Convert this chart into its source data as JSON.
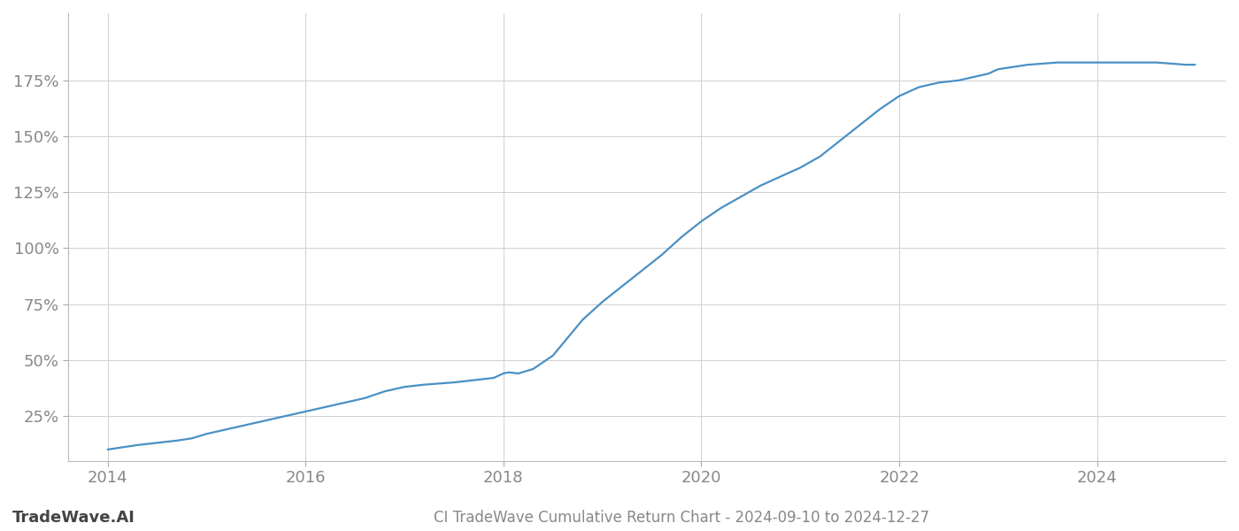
{
  "title": "CI TradeWave Cumulative Return Chart - 2024-09-10 to 2024-12-27",
  "watermark": "TradeWave.AI",
  "line_color": "#4a90c4",
  "background_color": "#ffffff",
  "grid_color": "#d0d0d0",
  "yticks": [
    25,
    50,
    75,
    100,
    125,
    150,
    175
  ],
  "xticks": [
    2014,
    2016,
    2018,
    2020,
    2022,
    2024
  ],
  "ylim": [
    5,
    205
  ],
  "xlim": [
    2013.6,
    2025.3
  ],
  "tick_label_color": "#888888",
  "tick_fontsize": 13,
  "title_fontsize": 12,
  "watermark_fontsize": 13,
  "line_width": 1.6,
  "x_data": [
    2014.0,
    2014.15,
    2014.3,
    2014.5,
    2014.7,
    2014.85,
    2015.0,
    2015.2,
    2015.4,
    2015.6,
    2015.8,
    2016.0,
    2016.2,
    2016.4,
    2016.6,
    2016.8,
    2017.0,
    2017.2,
    2017.5,
    2017.7,
    2017.9,
    2018.0,
    2018.05,
    2018.15,
    2018.3,
    2018.5,
    2018.65,
    2018.8,
    2019.0,
    2019.2,
    2019.4,
    2019.6,
    2019.8,
    2020.0,
    2020.2,
    2020.4,
    2020.6,
    2020.8,
    2021.0,
    2021.2,
    2021.4,
    2021.6,
    2021.8,
    2022.0,
    2022.2,
    2022.4,
    2022.6,
    2022.7,
    2022.9,
    2023.0,
    2023.3,
    2023.6,
    2023.9,
    2024.0,
    2024.3,
    2024.6,
    2024.9,
    2024.99
  ],
  "y_data": [
    10,
    11,
    12,
    13,
    14,
    15,
    17,
    19,
    21,
    23,
    25,
    27,
    29,
    31,
    33,
    36,
    38,
    39,
    40,
    41,
    42,
    44,
    44.5,
    44,
    46,
    52,
    60,
    68,
    76,
    83,
    90,
    97,
    105,
    112,
    118,
    123,
    128,
    132,
    136,
    141,
    148,
    155,
    162,
    168,
    172,
    174,
    175,
    176,
    178,
    180,
    182,
    183,
    183,
    183,
    183,
    183,
    182,
    182
  ]
}
